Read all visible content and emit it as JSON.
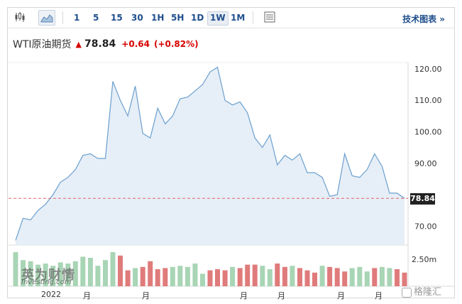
{
  "toolbar": {
    "intervals": [
      "1",
      "5",
      "15",
      "30",
      "1H",
      "5H",
      "1D",
      "1W",
      "1M"
    ],
    "active_interval": "1W",
    "right_link": "技术图表 »"
  },
  "quote": {
    "name": "WTI原油期货",
    "price": "78.84",
    "change": "+0.64",
    "change_pct": "(+0.82%)"
  },
  "price_tag": "78.84",
  "watermark": {
    "logo": "英为财情",
    "logo_sub": "Investing.com",
    "corner": "格隆汇"
  },
  "colors": {
    "line": "#6ba0cf",
    "area": "#e6eef7",
    "up_volume": "#a8d5b5",
    "down_volume": "#e07b7b",
    "change": "#d60000",
    "link": "#1f4e8c"
  },
  "chart_data": {
    "type": "area",
    "y_ticks": [
      "120.00",
      "110.00",
      "100.00",
      "90.00",
      "70.00"
    ],
    "ylim": [
      64,
      122
    ],
    "x_labels": [
      "2022",
      "月",
      "月",
      "月",
      "月",
      "月",
      "月",
      "月"
    ],
    "prices": [
      65.5,
      72.5,
      72,
      75,
      77,
      80,
      84,
      85.5,
      88,
      92.5,
      93,
      91.5,
      91.5,
      116,
      110,
      105,
      114.5,
      99.5,
      98,
      107.5,
      102.5,
      105,
      110.5,
      111,
      113,
      115,
      119,
      120.5,
      110,
      108.5,
      109.5,
      106,
      98,
      95,
      99,
      89.5,
      92.5,
      91,
      93,
      87,
      87,
      85.5,
      79.5,
      80,
      93,
      86,
      85.5,
      88,
      93,
      89,
      80.5,
      80.5,
      78.84
    ],
    "current": 78.84,
    "volume_tick": "2.50m",
    "volume_up": [
      true,
      true,
      true,
      true,
      true,
      true,
      true,
      true,
      true,
      true,
      true,
      true,
      true,
      true,
      false,
      false,
      true,
      false,
      false,
      false,
      false,
      true,
      true,
      true,
      true,
      true,
      false,
      false,
      false,
      true,
      false,
      false,
      false,
      true,
      true,
      false,
      false,
      true,
      false,
      false,
      false,
      true,
      false,
      false,
      false,
      true,
      true,
      true,
      false,
      true,
      true,
      false,
      false
    ],
    "volume": [
      3.0,
      2.3,
      2.2,
      1.9,
      2.0,
      1.8,
      2.1,
      2.0,
      2.2,
      2.6,
      2.5,
      1.8,
      2.3,
      3.0,
      2.7,
      1.4,
      1.6,
      1.7,
      2.2,
      1.5,
      1.6,
      1.7,
      1.8,
      1.7,
      2.0,
      1.1,
      1.4,
      1.5,
      1.4,
      1.7,
      1.6,
      1.9,
      1.9,
      1.8,
      1.5,
      2.0,
      1.7,
      1.8,
      1.6,
      1.4,
      1.2,
      1.8,
      1.7,
      1.6,
      1.3,
      1.6,
      1.7,
      1.3,
      1.6,
      1.7,
      1.6,
      1.5,
      1.2
    ]
  }
}
